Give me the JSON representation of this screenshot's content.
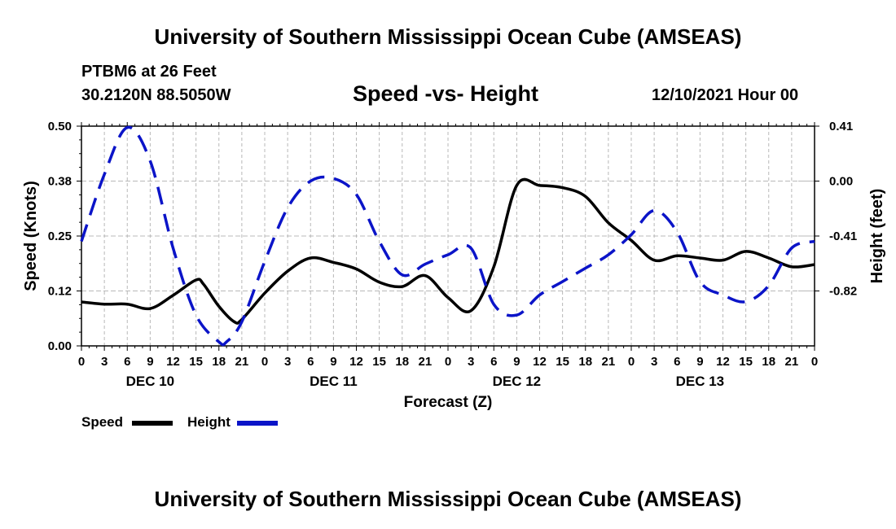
{
  "header": {
    "title_top": "University of Southern Mississippi Ocean Cube (AMSEAS)",
    "station": "PTBM6 at 26 Feet",
    "coords": "30.2120N  88.5050W",
    "subtitle": "Speed -vs- Height",
    "date": "12/10/2021 Hour 00",
    "title_bottom": "University of Southern Mississippi Ocean Cube (AMSEAS)"
  },
  "legend": {
    "speed_label": "Speed",
    "height_label": "Height"
  },
  "colors": {
    "speed": "#000000",
    "height": "#0b14c8",
    "grid": "#b8b8b8"
  },
  "chart_data": {
    "type": "line",
    "title": "Speed -vs- Height",
    "xlabel": "Forecast (Z)",
    "ylabel_left": "Speed (Knots)",
    "ylabel_right": "Height (feet)",
    "x_hours_range": [
      0,
      96
    ],
    "x_tick_labels": [
      "0",
      "3",
      "6",
      "9",
      "12",
      "15",
      "18",
      "21",
      "0",
      "3",
      "6",
      "9",
      "12",
      "15",
      "18",
      "21",
      "0",
      "3",
      "6",
      "9",
      "12",
      "15",
      "18",
      "21",
      "0",
      "3",
      "6",
      "9",
      "12",
      "15",
      "18",
      "21",
      "0"
    ],
    "day_labels": [
      {
        "label": "DEC 10",
        "hour": 9
      },
      {
        "label": "DEC 11",
        "hour": 33
      },
      {
        "label": "DEC 12",
        "hour": 57
      },
      {
        "label": "DEC 13",
        "hour": 81
      }
    ],
    "y_left": {
      "range": [
        0,
        0.5
      ],
      "ticks": [
        "0.00",
        "0.12",
        "0.25",
        "0.38",
        "0.50"
      ]
    },
    "y_right": {
      "range": [
        -1.23,
        0.41
      ],
      "ticks": [
        "-0.82",
        "-0.41",
        "0.00",
        "0.41"
      ]
    },
    "series": [
      {
        "name": "Speed",
        "axis": "left",
        "style": "solid",
        "x": [
          0,
          3,
          6,
          9,
          12,
          15,
          16,
          18,
          20,
          21,
          24,
          27,
          30,
          33,
          36,
          39,
          42,
          45,
          48,
          51,
          54,
          57,
          60,
          63,
          66,
          69,
          72,
          75,
          78,
          81,
          84,
          87,
          90,
          93,
          96
        ],
        "values": [
          0.1,
          0.095,
          0.095,
          0.085,
          0.115,
          0.15,
          0.14,
          0.09,
          0.055,
          0.06,
          0.12,
          0.17,
          0.2,
          0.19,
          0.175,
          0.145,
          0.135,
          0.16,
          0.11,
          0.08,
          0.18,
          0.365,
          0.365,
          0.36,
          0.34,
          0.28,
          0.24,
          0.195,
          0.205,
          0.2,
          0.195,
          0.215,
          0.2,
          0.18,
          0.185
        ]
      },
      {
        "name": "Height",
        "axis": "right",
        "style": "dashed",
        "x": [
          0,
          3,
          6,
          9,
          12,
          15,
          18,
          19,
          21,
          24,
          27,
          30,
          33,
          36,
          39,
          42,
          45,
          48,
          51,
          54,
          57,
          60,
          63,
          66,
          69,
          72,
          75,
          78,
          81,
          84,
          87,
          90,
          93,
          96
        ],
        "values": [
          -0.45,
          0.05,
          0.4,
          0.15,
          -0.5,
          -1.0,
          -1.2,
          -1.2,
          -1.05,
          -0.6,
          -0.2,
          0.0,
          0.02,
          -0.1,
          -0.45,
          -0.7,
          -0.62,
          -0.55,
          -0.5,
          -0.92,
          -1.0,
          -0.85,
          -0.75,
          -0.65,
          -0.55,
          -0.4,
          -0.22,
          -0.38,
          -0.75,
          -0.85,
          -0.9,
          -0.78,
          -0.5,
          -0.45
        ]
      }
    ]
  }
}
